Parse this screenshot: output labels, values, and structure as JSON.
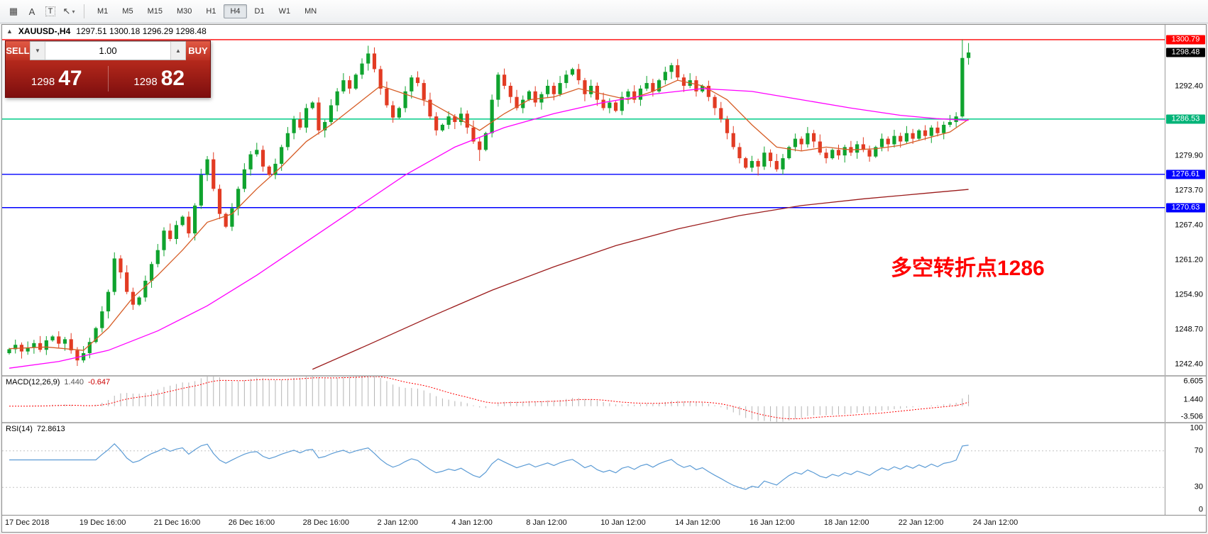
{
  "toolbar": {
    "tools": [
      {
        "name": "grid-icon",
        "glyph": "▦"
      },
      {
        "name": "text-label-icon",
        "glyph": "A"
      },
      {
        "name": "text-frame-icon",
        "glyph": "T",
        "boxed": true
      },
      {
        "name": "arrow-tools-icon",
        "glyph": "↖",
        "caret": "▾"
      }
    ],
    "timeframes": [
      "M1",
      "M5",
      "M15",
      "M30",
      "H1",
      "H4",
      "D1",
      "W1",
      "MN"
    ],
    "active_timeframe": "H4"
  },
  "chart": {
    "arrow": "▲",
    "symbol_tf": "XAUUSD-,H4",
    "ohlc_text": "1297.51 1300.18 1296.29 1298.48"
  },
  "trade_panel": {
    "sell_label": "SELL",
    "buy_label": "BUY",
    "volume": "1.00",
    "caret_down": "▼",
    "caret_up": "▲",
    "bid": {
      "main": "1298",
      "big": "47"
    },
    "ask": {
      "main": "1298",
      "big": "82"
    }
  },
  "macd": {
    "label": "MACD(12,26,9)",
    "value_main": "1.440",
    "value_signal": "-0.647",
    "axis": [
      "6.605",
      "1.440",
      "-3.506"
    ],
    "histogram_color": "#b4b4b4",
    "signal_color": "#ff0000"
  },
  "rsi": {
    "label": "RSI(14)",
    "value": "72.8613",
    "axis": [
      "100",
      "70",
      "30",
      "0"
    ],
    "levels": [
      70,
      30
    ],
    "line_color": "#5b9bd5"
  },
  "chart_data": {
    "type": "candlestick",
    "symbol": "XAUUSD-",
    "timeframe": "H4",
    "price_range": {
      "max": 1303.45,
      "min": 1240.55
    },
    "start_open": 1244.5,
    "closes": [
      1245.2,
      1246.0,
      1244.8,
      1245.5,
      1246.3,
      1245.1,
      1246.8,
      1247.5,
      1246.2,
      1247.0,
      1245.0,
      1243.2,
      1244.5,
      1246.5,
      1249.0,
      1252.0,
      1255.5,
      1261.5,
      1259.0,
      1255.5,
      1253.2,
      1254.5,
      1257.5,
      1260.5,
      1263.0,
      1266.5,
      1265.0,
      1267.5,
      1269.0,
      1266.0,
      1271.0,
      1276.5,
      1279.3,
      1274.0,
      1269.5,
      1267.2,
      1270.5,
      1274.0,
      1277.5,
      1280.2,
      1281.0,
      1278.0,
      1276.5,
      1278.5,
      1281.5,
      1284.0,
      1286.5,
      1285.0,
      1288.5,
      1289.5,
      1284.5,
      1286.0,
      1289.0,
      1291.5,
      1293.5,
      1292.0,
      1294.5,
      1296.5,
      1298.3,
      1295.5,
      1292.0,
      1289.0,
      1286.8,
      1288.5,
      1291.5,
      1294.0,
      1293.0,
      1290.0,
      1287.0,
      1284.5,
      1285.5,
      1287.0,
      1286.0,
      1287.5,
      1285.0,
      1282.5,
      1281.0,
      1284.0,
      1290.0,
      1294.5,
      1292.5,
      1290.5,
      1288.5,
      1290.0,
      1291.5,
      1289.5,
      1291.0,
      1292.5,
      1291.0,
      1293.0,
      1294.5,
      1295.5,
      1293.5,
      1291.0,
      1292.5,
      1290.0,
      1288.5,
      1289.5,
      1288.0,
      1290.5,
      1291.5,
      1290.0,
      1292.0,
      1293.0,
      1291.5,
      1293.5,
      1295.0,
      1296.2,
      1294.0,
      1292.5,
      1293.5,
      1291.5,
      1292.5,
      1290.5,
      1288.5,
      1286.5,
      1284.0,
      1281.5,
      1279.5,
      1277.8,
      1279.0,
      1278.0,
      1280.5,
      1279.0,
      1277.5,
      1279.5,
      1281.5,
      1283.0,
      1282.0,
      1284.0,
      1282.5,
      1280.5,
      1279.5,
      1281.0,
      1280.0,
      1281.5,
      1280.5,
      1282.0,
      1281.0,
      1279.8,
      1281.5,
      1283.0,
      1282.0,
      1283.5,
      1282.5,
      1284.0,
      1283.0,
      1284.5,
      1283.5,
      1285.0,
      1284.0,
      1285.5,
      1286.0,
      1287.0,
      1297.5,
      1298.48
    ],
    "wick_overrides": {
      "11": {
        "low": 1242.2
      },
      "58": {
        "high": 1299.7
      },
      "76": {
        "low": 1279.0
      },
      "121": {
        "low": 1276.4
      },
      "154": {
        "high": 1300.79
      },
      "155": {
        "high": 1300.18,
        "low": 1296.29
      }
    },
    "colors": {
      "bull": "#0fa32e",
      "bear": "#e23b23"
    },
    "hlines": [
      {
        "price": 1300.79,
        "color": "#ff0000",
        "label": "1300.79"
      },
      {
        "price": 1286.53,
        "color": "#00cc88",
        "label": "1286.53"
      },
      {
        "price": 1276.61,
        "color": "#0000ff",
        "label": "1276.61"
      },
      {
        "price": 1270.63,
        "color": "#0000ff",
        "label": "1270.63"
      }
    ],
    "price_labels": [
      {
        "text": "1300.79",
        "price": 1300.79,
        "bg": "#ff0000"
      },
      {
        "text": "1298.48",
        "price": 1298.48,
        "bg": "#000000"
      },
      {
        "text": "1286.53",
        "price": 1286.53,
        "bg": "#00b377"
      },
      {
        "text": "1276.61",
        "price": 1276.61,
        "bg": "#0000ff"
      },
      {
        "text": "1270.63",
        "price": 1270.63,
        "bg": "#0000ff"
      }
    ],
    "y_ticks": [
      "1292.40",
      "1279.90",
      "1273.70",
      "1267.40",
      "1261.20",
      "1254.90",
      "1248.70",
      "1242.40"
    ],
    "x_labels": [
      "17 Dec 2018",
      "19 Dec 16:00",
      "21 Dec 16:00",
      "26 Dec 16:00",
      "28 Dec 16:00",
      "2 Jan 12:00",
      "4 Jan 12:00",
      "8 Jan 12:00",
      "10 Jan 12:00",
      "14 Jan 12:00",
      "16 Jan 12:00",
      "18 Jan 12:00",
      "22 Jan 12:00",
      "24 Jan 12:00"
    ],
    "ma_lines": [
      {
        "name": "ma-fast",
        "color": "#d65d26",
        "points": [
          [
            0,
            1245.3
          ],
          [
            6,
            1245.6
          ],
          [
            12,
            1245.0
          ],
          [
            16,
            1249.0
          ],
          [
            20,
            1254.5
          ],
          [
            24,
            1258.5
          ],
          [
            28,
            1263.0
          ],
          [
            32,
            1268.0
          ],
          [
            36,
            1269.5
          ],
          [
            40,
            1274.0
          ],
          [
            44,
            1278.0
          ],
          [
            48,
            1282.5
          ],
          [
            52,
            1285.5
          ],
          [
            56,
            1289.0
          ],
          [
            60,
            1292.5
          ],
          [
            64,
            1291.0
          ],
          [
            68,
            1289.5
          ],
          [
            72,
            1287.0
          ],
          [
            76,
            1284.5
          ],
          [
            80,
            1287.5
          ],
          [
            84,
            1290.0
          ],
          [
            88,
            1290.5
          ],
          [
            92,
            1292.0
          ],
          [
            96,
            1291.0
          ],
          [
            100,
            1290.0
          ],
          [
            104,
            1291.5
          ],
          [
            108,
            1293.5
          ],
          [
            112,
            1292.5
          ],
          [
            116,
            1290.0
          ],
          [
            120,
            1285.5
          ],
          [
            124,
            1281.5
          ],
          [
            128,
            1280.8
          ],
          [
            132,
            1281.5
          ],
          [
            136,
            1281.0
          ],
          [
            140,
            1281.2
          ],
          [
            144,
            1281.8
          ],
          [
            148,
            1283.0
          ],
          [
            152,
            1284.2
          ],
          [
            155,
            1286.5
          ]
        ]
      },
      {
        "name": "ma-mid",
        "color": "#ff00ff",
        "points": [
          [
            0,
            1241.8
          ],
          [
            8,
            1243.0
          ],
          [
            16,
            1245.0
          ],
          [
            24,
            1248.5
          ],
          [
            32,
            1253.0
          ],
          [
            40,
            1258.5
          ],
          [
            48,
            1264.5
          ],
          [
            56,
            1270.5
          ],
          [
            64,
            1276.5
          ],
          [
            72,
            1281.5
          ],
          [
            80,
            1285.0
          ],
          [
            88,
            1287.5
          ],
          [
            96,
            1289.5
          ],
          [
            104,
            1291.0
          ],
          [
            112,
            1292.0
          ],
          [
            120,
            1291.5
          ],
          [
            128,
            1290.0
          ],
          [
            136,
            1288.5
          ],
          [
            144,
            1287.2
          ],
          [
            150,
            1286.6
          ],
          [
            155,
            1286.3
          ]
        ]
      },
      {
        "name": "ma-slow",
        "color": "#9b1b1b",
        "points": [
          [
            49,
            1241.6
          ],
          [
            58,
            1246.0
          ],
          [
            68,
            1251.0
          ],
          [
            78,
            1255.8
          ],
          [
            88,
            1260.0
          ],
          [
            98,
            1263.8
          ],
          [
            108,
            1266.8
          ],
          [
            118,
            1269.2
          ],
          [
            128,
            1271.0
          ],
          [
            138,
            1272.2
          ],
          [
            148,
            1273.2
          ],
          [
            155,
            1273.9
          ]
        ]
      }
    ],
    "annotation": {
      "text": "多空转折点1286",
      "color": "#ff0000"
    }
  }
}
